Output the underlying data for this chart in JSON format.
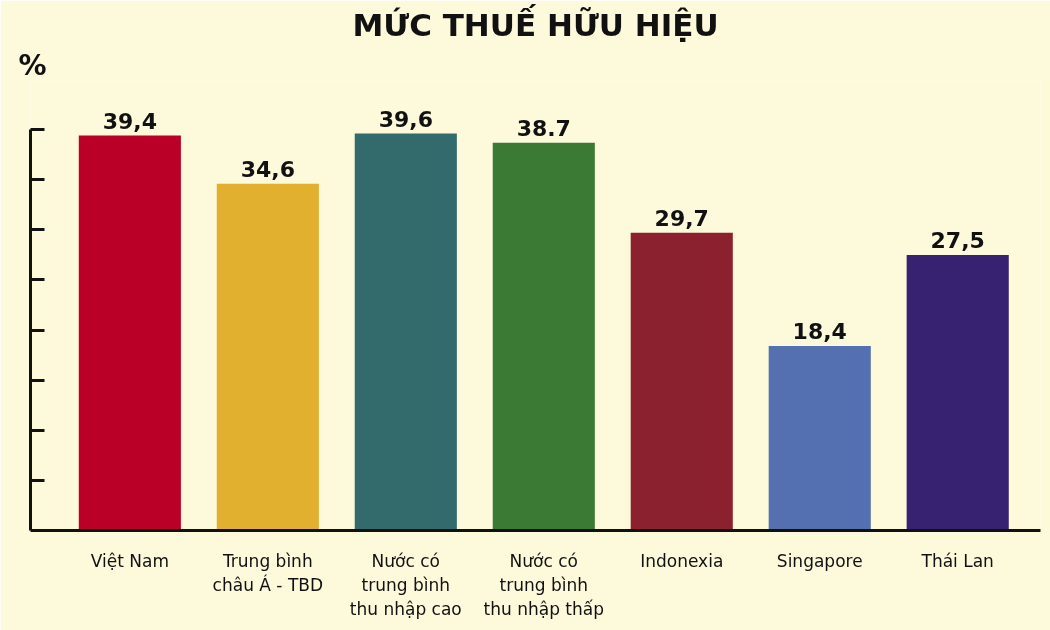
{
  "chart_data": {
    "type": "bar",
    "title": "MỨC THUẾ HỮU HIỆU",
    "ylabel": "%",
    "categories": [
      "Việt Nam",
      "Trung bình\nchâu Á - TBD",
      "Nước có\ntrung bình\nthu nhập cao",
      "Nước có\ntrung bình\nthu nhập thấp",
      "Indonexia",
      "Singapore",
      "Thái Lan"
    ],
    "values": [
      39.4,
      34.6,
      39.6,
      38.7,
      29.7,
      18.4,
      27.5
    ],
    "colors": [
      "#bb0027",
      "#e0b02e",
      "#336a6b",
      "#3a7a35",
      "#8b202e",
      "#5470b0",
      "#362270"
    ],
    "value_labels": [
      "39,4",
      "34,6",
      "39,6",
      "38.7",
      "29,7",
      "18,4",
      "27,5"
    ],
    "ylim": [
      0,
      40
    ],
    "yticks": [
      {
        "value": 5,
        "label": null
      },
      {
        "value": 10,
        "label": null
      },
      {
        "value": 15,
        "label": null
      },
      {
        "value": 20,
        "label": null
      },
      {
        "value": 25,
        "label": null
      },
      {
        "value": 30,
        "label": null
      },
      {
        "value": 35,
        "label": null
      },
      {
        "value": 40,
        "label": null
      }
    ]
  }
}
